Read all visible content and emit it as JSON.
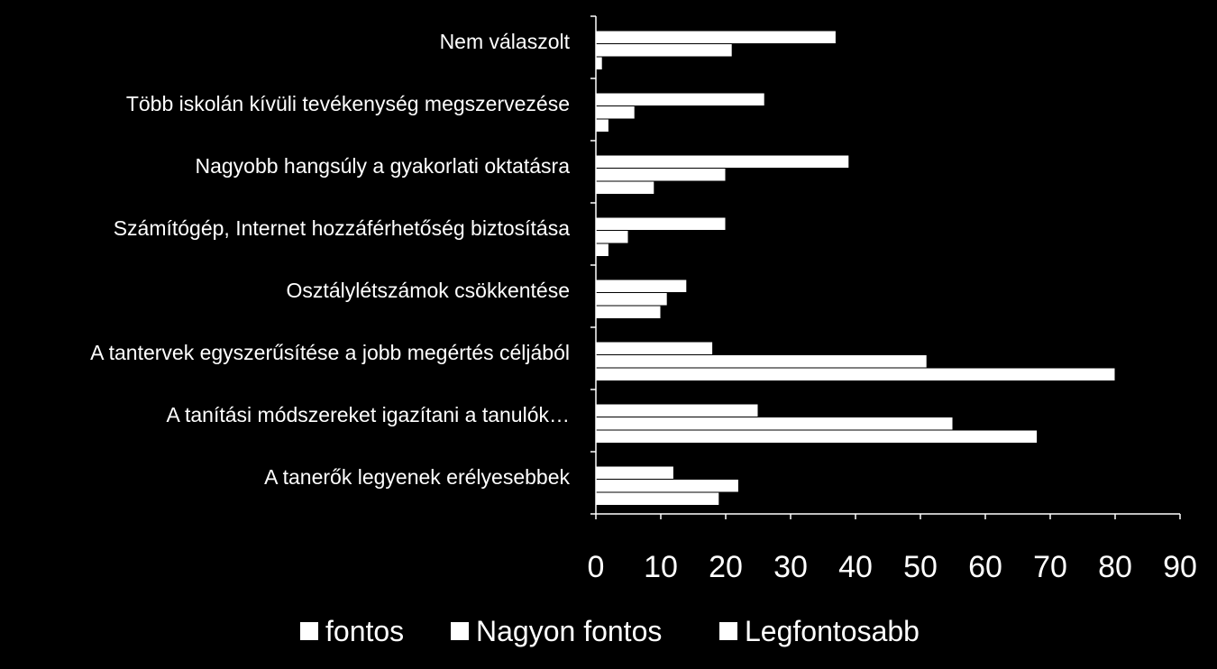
{
  "chart_data": {
    "type": "bar",
    "orientation": "horizontal",
    "categories": [
      "Nem válaszolt",
      "Több iskolán kívüli tevékenység megszervezése",
      "Nagyobb hangsúly a gyakorlati oktatásra",
      "Számítógép, Internet hozzáférhetőség biztosítása",
      "Osztálylétszámok csökkentése",
      "A tantervek egyszerűsítése a jobb megértés céljából",
      "A tanítási módszereket igazítani a tanulók…",
      "A tanerők legyenek erélyesebbek"
    ],
    "series": [
      {
        "name": "fontos",
        "values": [
          37,
          26,
          39,
          20,
          14,
          18,
          25,
          12
        ]
      },
      {
        "name": "Nagyon fontos",
        "values": [
          21,
          6,
          20,
          5,
          11,
          51,
          55,
          22
        ]
      },
      {
        "name": "Legfontosabb",
        "values": [
          1,
          2,
          9,
          2,
          10,
          80,
          68,
          19
        ]
      }
    ],
    "xlim": [
      0,
      90
    ],
    "xticks": [
      0,
      10,
      20,
      30,
      40,
      50,
      60,
      70,
      80,
      90
    ],
    "grid": false,
    "legend_position": "bottom",
    "colors": {
      "background": "#000000",
      "bars": "#ffffff",
      "text": "#ffffff",
      "axis": "#ffffff"
    }
  }
}
